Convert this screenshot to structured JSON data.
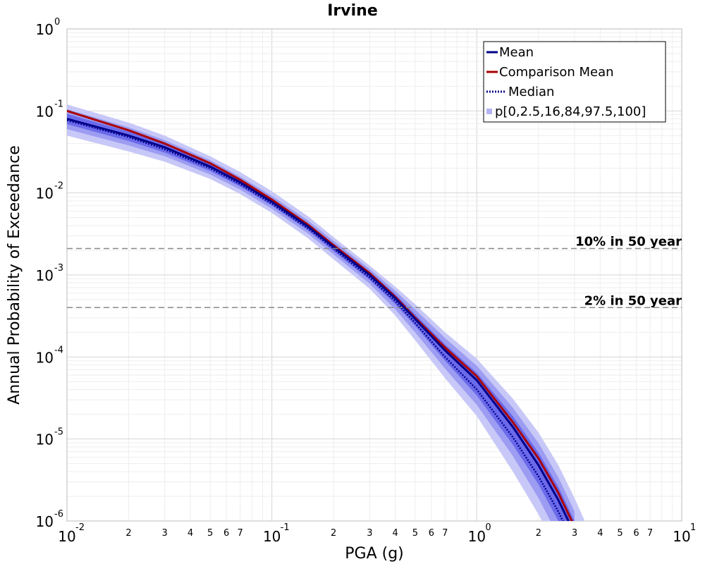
{
  "chart_data": {
    "type": "line",
    "title": "Irvine",
    "xlabel": "PGA (g)",
    "ylabel": "Annual Probability of Exceedance",
    "x_scale": "log",
    "y_scale": "log",
    "xlim": [
      0.01,
      10
    ],
    "ylim": [
      1e-06,
      1
    ],
    "grid": true,
    "legend_position": "top-right",
    "x_major_ticks": [
      {
        "base": "10",
        "exp": "-2",
        "value": 0.01
      },
      {
        "base": "10",
        "exp": "-1",
        "value": 0.1
      },
      {
        "base": "10",
        "exp": "0",
        "value": 1
      },
      {
        "base": "10",
        "exp": "1",
        "value": 10
      }
    ],
    "y_major_ticks": [
      {
        "base": "10",
        "exp": "0",
        "value": 1
      },
      {
        "base": "10",
        "exp": "-1",
        "value": 0.1
      },
      {
        "base": "10",
        "exp": "-2",
        "value": 0.01
      },
      {
        "base": "10",
        "exp": "-3",
        "value": 0.001
      },
      {
        "base": "10",
        "exp": "-4",
        "value": 0.0001
      },
      {
        "base": "10",
        "exp": "-5",
        "value": 1e-05
      },
      {
        "base": "10",
        "exp": "-6",
        "value": 1e-06
      }
    ],
    "x_minor_tick_labels": [
      "2",
      "3",
      "4",
      "5",
      "6",
      "7"
    ],
    "reference_lines": [
      {
        "label": "10% in 50 year",
        "y": 0.0021,
        "color": "#888888"
      },
      {
        "label": "2% in 50 year",
        "y": 0.0004,
        "color": "#888888"
      }
    ],
    "x": [
      0.01,
      0.02,
      0.03,
      0.05,
      0.07,
      0.1,
      0.15,
      0.2,
      0.3,
      0.4,
      0.5,
      0.7,
      1.0,
      1.5,
      2.0,
      2.5,
      3.0,
      3.5
    ],
    "series": [
      {
        "name": "Mean",
        "style": "solid",
        "color": "#00008b",
        "values": [
          0.08,
          0.05,
          0.036,
          0.021,
          0.0135,
          0.0078,
          0.0039,
          0.0022,
          0.001,
          0.00052,
          0.00029,
          0.00012,
          5.2e-05,
          1.4e-05,
          4.8e-06,
          1.8e-06,
          7e-07,
          null
        ]
      },
      {
        "name": "Comparison Mean",
        "style": "solid",
        "color": "#aa0000",
        "values": [
          0.1,
          0.058,
          0.04,
          0.023,
          0.0145,
          0.0083,
          0.0041,
          0.0023,
          0.00105,
          0.00054,
          0.0003,
          0.00013,
          5.8e-05,
          1.6e-05,
          5.8e-06,
          2.2e-06,
          8.5e-07,
          null
        ]
      },
      {
        "name": "Median",
        "style": "dotted",
        "color": "#00008b",
        "values": [
          0.077,
          0.048,
          0.034,
          0.02,
          0.0128,
          0.0074,
          0.0037,
          0.0021,
          0.00093,
          0.00048,
          0.00026,
          0.0001,
          4e-05,
          1.05e-05,
          3.5e-06,
          1.3e-06,
          5e-07,
          null
        ]
      }
    ],
    "percentile_bands": {
      "name": "p[0,2.5,16,84,97.5,100]",
      "colors": [
        "#c8c8f8",
        "#9c9cf2",
        "#6a6aea"
      ],
      "bands": [
        {
          "lower": [
            0.05,
            0.032,
            0.024,
            0.0148,
            0.0097,
            0.0057,
            0.0028,
            0.00155,
            0.00068,
            0.00032,
            0.00016,
            5.5e-05,
            1.9e-05,
            4e-06,
            1.2e-06,
            4e-07,
            null,
            null
          ],
          "upper": [
            0.12,
            0.072,
            0.05,
            0.028,
            0.018,
            0.0105,
            0.0052,
            0.0029,
            0.0013,
            0.00072,
            0.00044,
            0.0002,
            9.5e-05,
            3.1e-05,
            1.2e-05,
            4.8e-06,
            1.9e-06,
            8e-07
          ]
        },
        {
          "lower": [
            0.06,
            0.038,
            0.028,
            0.0168,
            0.011,
            0.0064,
            0.0032,
            0.00178,
            0.00078,
            0.00038,
            0.0002,
            7.2e-05,
            2.6e-05,
            6.2e-06,
            1.9e-06,
            6.5e-07,
            null,
            null
          ],
          "upper": [
            0.105,
            0.063,
            0.044,
            0.025,
            0.0158,
            0.0092,
            0.0046,
            0.0026,
            0.00118,
            0.00064,
            0.00038,
            0.00017,
            7.8e-05,
            2.4e-05,
            8.9e-06,
            3.4e-06,
            1.3e-06,
            null
          ]
        },
        {
          "lower": [
            0.069,
            0.043,
            0.031,
            0.0185,
            0.012,
            0.007,
            0.0035,
            0.00195,
            0.00087,
            0.00044,
            0.00024,
            9e-05,
            3.4e-05,
            8.5e-06,
            2.8e-06,
            1e-06,
            null,
            null
          ],
          "upper": [
            0.092,
            0.056,
            0.04,
            0.0228,
            0.0146,
            0.0085,
            0.0042,
            0.0024,
            0.0011,
            0.00058,
            0.00033,
            0.000142,
            6.4e-05,
            1.9e-05,
            6.8e-06,
            2.6e-06,
            1e-06,
            null
          ]
        }
      ]
    },
    "legend": [
      {
        "label": "Mean",
        "kind": "line",
        "style": "solid",
        "color": "#00008b"
      },
      {
        "label": "Comparison Mean",
        "kind": "line",
        "style": "solid",
        "color": "#aa0000"
      },
      {
        "label": "Median",
        "kind": "line",
        "style": "dotted",
        "color": "#00008b"
      },
      {
        "label": "p[0,2.5,16,84,97.5,100]",
        "kind": "patch",
        "color": "#b4b4f4"
      }
    ]
  }
}
